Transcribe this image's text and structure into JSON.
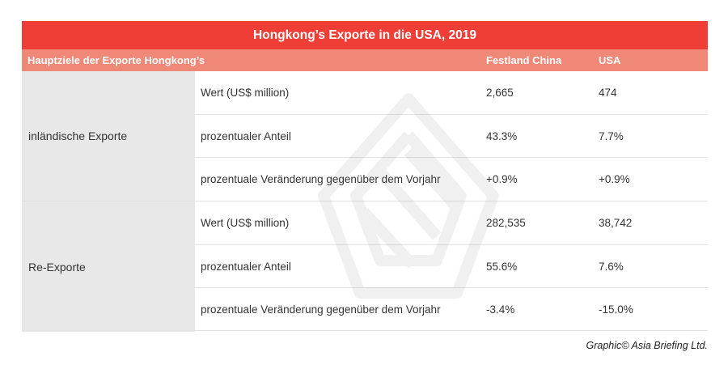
{
  "table": {
    "title": "Hongkong’s Exporte in die USA, 2019",
    "headers": {
      "destination": "Hauptziele der Exporte Hongkong’s",
      "china": "Festland China",
      "usa": "USA"
    },
    "groups": [
      {
        "label": "inländische Exporte",
        "rows": [
          {
            "metric": "Wert (US$ million)",
            "china": "2,665",
            "usa": "474"
          },
          {
            "metric": "prozentualer Anteil",
            "china": "43.3%",
            "usa": "7.7%"
          },
          {
            "metric": "prozentuale Veränderung gegenüber dem Vorjahr",
            "china": "+0.9%",
            "usa": "+0.9%"
          }
        ]
      },
      {
        "label": "Re-Exporte",
        "rows": [
          {
            "metric": "Wert (US$ million)",
            "china": "282,535",
            "usa": "38,742"
          },
          {
            "metric": "prozentualer Anteil",
            "china": "55.6%",
            "usa": "7.6%"
          },
          {
            "metric": "prozentuale Veränderung gegenüber dem Vorjahr",
            "china": "-3.4%",
            "usa": "-15.0%"
          }
        ]
      }
    ]
  },
  "credit": "Graphic© Asia Briefing Ltd.",
  "colors": {
    "title_bar": "#ef3e36",
    "header_row": "#f08878",
    "group_label_bg": "#e8e8e8"
  },
  "watermark_icon": "asia-briefing-logo-watermark"
}
